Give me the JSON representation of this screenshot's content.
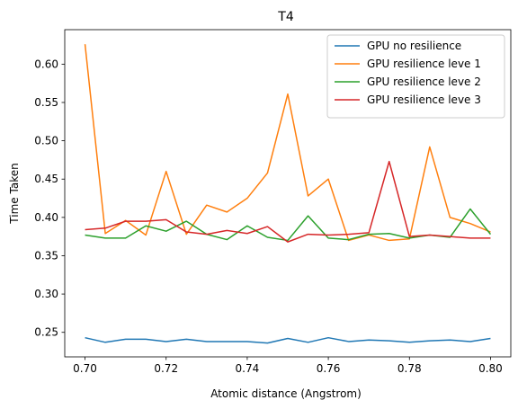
{
  "chart_data": {
    "type": "line",
    "title": "T4",
    "xlabel": "Atomic distance (Angstrom)",
    "ylabel": "Time Taken",
    "xlim": [
      0.695,
      0.805
    ],
    "ylim": [
      0.218,
      0.645
    ],
    "xticks": [
      0.7,
      0.72,
      0.74,
      0.76,
      0.78,
      0.8
    ],
    "xtick_labels": [
      "0.70",
      "0.72",
      "0.74",
      "0.76",
      "0.78",
      "0.80"
    ],
    "yticks": [
      0.25,
      0.3,
      0.35,
      0.4,
      0.45,
      0.5,
      0.55,
      0.6
    ],
    "ytick_labels": [
      "0.25",
      "0.30",
      "0.35",
      "0.40",
      "0.45",
      "0.50",
      "0.55",
      "0.60"
    ],
    "grid": false,
    "legend_position": "top-right",
    "x": [
      0.7,
      0.705,
      0.71,
      0.715,
      0.72,
      0.725,
      0.73,
      0.735,
      0.74,
      0.745,
      0.75,
      0.755,
      0.76,
      0.765,
      0.77,
      0.775,
      0.78,
      0.785,
      0.79,
      0.795,
      0.8
    ],
    "series": [
      {
        "name": "GPU no resilience",
        "color": "#1f77b4",
        "values": [
          0.243,
          0.237,
          0.241,
          0.241,
          0.238,
          0.241,
          0.238,
          0.238,
          0.238,
          0.236,
          0.242,
          0.237,
          0.243,
          0.238,
          0.24,
          0.239,
          0.237,
          0.239,
          0.24,
          0.238,
          0.242
        ]
      },
      {
        "name": "GPU resilience leve 1",
        "color": "#ff7f0e",
        "values": [
          0.626,
          0.379,
          0.396,
          0.377,
          0.46,
          0.378,
          0.416,
          0.407,
          0.425,
          0.458,
          0.561,
          0.428,
          0.45,
          0.37,
          0.377,
          0.37,
          0.372,
          0.492,
          0.4,
          0.392,
          0.381
        ]
      },
      {
        "name": "GPU resilience leve 2",
        "color": "#2ca02c",
        "values": [
          0.377,
          0.373,
          0.373,
          0.389,
          0.382,
          0.395,
          0.378,
          0.371,
          0.389,
          0.374,
          0.37,
          0.402,
          0.373,
          0.371,
          0.378,
          0.379,
          0.373,
          0.377,
          0.374,
          0.411,
          0.378
        ]
      },
      {
        "name": "GPU resilience leve 3",
        "color": "#d62728",
        "values": [
          0.384,
          0.386,
          0.395,
          0.395,
          0.397,
          0.381,
          0.378,
          0.383,
          0.379,
          0.388,
          0.368,
          0.378,
          0.377,
          0.378,
          0.38,
          0.473,
          0.375,
          0.377,
          0.375,
          0.373,
          0.373
        ]
      }
    ]
  }
}
